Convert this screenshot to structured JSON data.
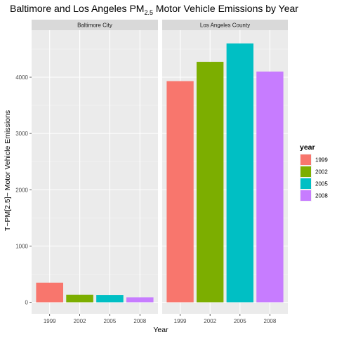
{
  "chart_data": {
    "type": "bar",
    "title_prefix": "Baltimore and Los Angeles PM",
    "title_subscript": "2.5",
    "title_suffix": " Motor Vehicle Emissions by Year",
    "xlabel": "Year",
    "ylabel": "T~PM[2.5]~ Motor Vehicle Emissions",
    "ylim": [
      0,
      4800
    ],
    "yticks": [
      0,
      1000,
      2000,
      3000,
      4000
    ],
    "categories": [
      "1999",
      "2002",
      "2005",
      "2008"
    ],
    "legend": {
      "title": "year",
      "position": "right",
      "entries": [
        "1999",
        "2002",
        "2005",
        "2008"
      ]
    },
    "colors": [
      "#F8766D",
      "#7CAE00",
      "#00BFC4",
      "#C77CFF"
    ],
    "panels": [
      {
        "name": "Baltimore City",
        "values": [
          347,
          134,
          130,
          88
        ]
      },
      {
        "name": "Los Angeles County",
        "values": [
          3931,
          4274,
          4601,
          4101
        ]
      }
    ]
  }
}
